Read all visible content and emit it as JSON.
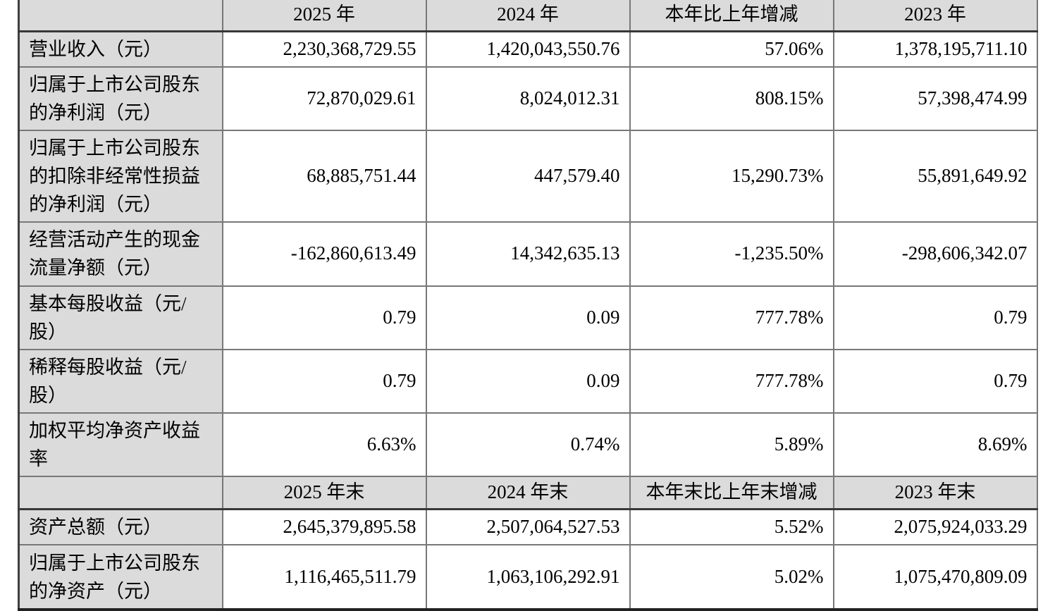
{
  "page": {
    "background": "#ffffff",
    "accent_gray": "#dbdbdb",
    "grid_color": "#787878",
    "text_color": "#000000"
  },
  "table": {
    "description": "key-financial-indicators-table",
    "columns": [
      "indicator",
      "2025",
      "2024",
      "change-yoy",
      "2023"
    ],
    "rows": [
      {
        "type": "header",
        "cells": [
          "",
          "2025 年",
          "2024 年",
          "本年比上年增减",
          "2023 年"
        ]
      },
      {
        "type": "data",
        "cells": [
          "营业收入（元）",
          "2,230,368,729.55",
          "1,420,043,550.76",
          "57.06%",
          "1,378,195,711.10"
        ]
      },
      {
        "type": "data",
        "cells": [
          "归属于上市公司股东\n的净利润（元）",
          "72,870,029.61",
          "8,024,012.31",
          "808.15%",
          "57,398,474.99"
        ]
      },
      {
        "type": "data",
        "cells": [
          "归属于上市公司股东\n的扣除非经常性损益\n的净利润（元）",
          "68,885,751.44",
          "447,579.40",
          "15,290.73%",
          "55,891,649.92"
        ]
      },
      {
        "type": "data",
        "cells": [
          "经营活动产生的现金\n流量净额（元）",
          "-162,860,613.49",
          "14,342,635.13",
          "-1,235.50%",
          "-298,606,342.07"
        ]
      },
      {
        "type": "data",
        "cells": [
          "基本每股收益（元/\n股）",
          "0.79",
          "0.09",
          "777.78%",
          "0.79"
        ]
      },
      {
        "type": "data",
        "cells": [
          "稀释每股收益（元/\n股）",
          "0.79",
          "0.09",
          "777.78%",
          "0.79"
        ]
      },
      {
        "type": "data",
        "cells": [
          "加权平均净资产收益\n率",
          "6.63%",
          "0.74%",
          "5.89%",
          "8.69%"
        ]
      },
      {
        "type": "header",
        "cells": [
          "",
          "2025 年末",
          "2024 年末",
          "本年末比上年末增减",
          "2023 年末"
        ]
      },
      {
        "type": "data",
        "cells": [
          "资产总额（元）",
          "2,645,379,895.58",
          "2,507,064,527.53",
          "5.52%",
          "2,075,924,033.29"
        ]
      },
      {
        "type": "data",
        "cells": [
          "归属于上市公司股东\n的净资产（元）",
          "1,116,465,511.79",
          "1,063,106,292.91",
          "5.02%",
          "1,075,470,809.09"
        ]
      }
    ]
  }
}
